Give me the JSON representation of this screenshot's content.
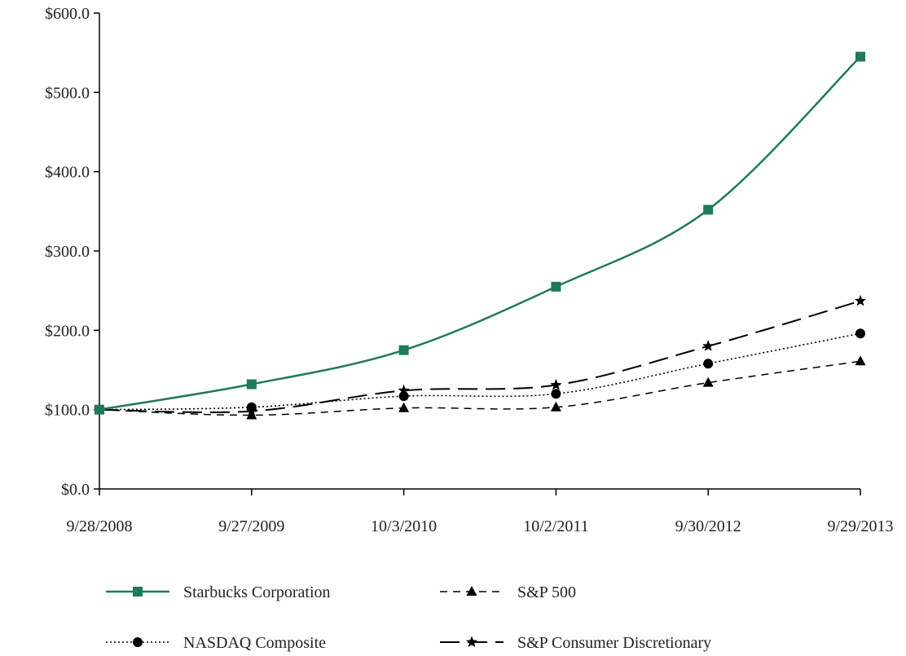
{
  "chart_data": {
    "type": "line",
    "title": "",
    "xlabel": "",
    "ylabel": "",
    "x": [
      "9/28/2008",
      "9/27/2009",
      "10/3/2010",
      "10/2/2011",
      "9/30/2012",
      "9/29/2013"
    ],
    "y_ticks": [
      "$0.0",
      "$100.0",
      "$200.0",
      "$300.0",
      "$400.0",
      "$500.0",
      "$600.0"
    ],
    "ylim": [
      0,
      600
    ],
    "grid": false,
    "legend_position": "bottom",
    "series": [
      {
        "name": "Starbucks Corporation",
        "values": [
          100,
          132,
          175,
          255,
          352,
          545
        ],
        "color": "#1f7a5a",
        "marker": "square",
        "line_style": "solid"
      },
      {
        "name": "S&P 500",
        "values": [
          100,
          93,
          102,
          103,
          134,
          161
        ],
        "color": "#000000",
        "marker": "triangle",
        "line_style": "short-dash"
      },
      {
        "name": "NASDAQ Composite",
        "values": [
          100,
          103,
          117,
          120,
          158,
          196
        ],
        "color": "#000000",
        "marker": "circle",
        "line_style": "dotted"
      },
      {
        "name": "S&P Consumer Discretionary",
        "values": [
          100,
          98,
          124,
          131,
          180,
          237
        ],
        "color": "#000000",
        "marker": "star",
        "line_style": "long-dash"
      }
    ]
  }
}
